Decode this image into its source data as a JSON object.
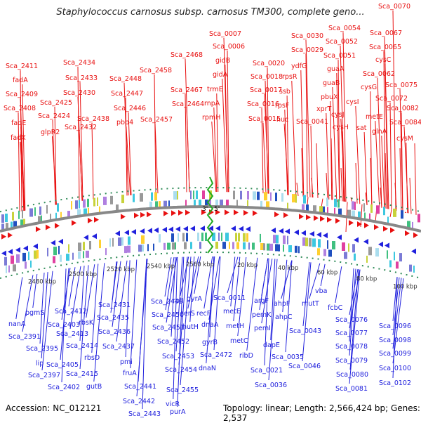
{
  "title": "Staphylococcus carnosus subsp. carnosus TM300, complete geno...",
  "accession": "Accession: NC_012121",
  "topology": "Topology: linear; Length: 2,566,424 bp; Genes: 2,537",
  "end_labels": {
    "three": "3'",
    "five": "5'"
  },
  "colors": {
    "top_strand": "#e81010",
    "bottom_strand": "#2020dd",
    "backbone": "#888888",
    "tick_dots": "#2e8b57",
    "ends": "#22aa22"
  },
  "scale_labels": [
    "2480 kbp",
    "2500 kbp",
    "2520 kbp",
    "2540 kbp",
    "2560 kbp",
    "20 kbp",
    "40 kbp",
    "60 kbp",
    "80 kbp",
    "100 kbp"
  ],
  "top_labels": [
    "Sca_2411",
    "fadA",
    "Sca_2409",
    "Sca_2408",
    "fadE",
    "fadX",
    "Sca_2425",
    "Sca_2424",
    "glpR2",
    "Sca_2434",
    "Sca_2433",
    "Sca_2430",
    "Sca_2438",
    "Sca_2432",
    "Sca_2448",
    "Sca_2447",
    "Sca_2446",
    "pbp4",
    "Sca_2458",
    "Sca_2457",
    "Sca_2468",
    "Sca_2467",
    "Sca_2464",
    "Sca_0007",
    "Sca_0006",
    "gidB",
    "gidA",
    "trmE",
    "rnpA",
    "rpmH",
    "Sca_0020",
    "Sca_0018",
    "Sca_0017",
    "Sca_0016",
    "Sca_0015",
    "Sca_0030",
    "Sca_0029",
    "ydfG",
    "rpsR",
    "ssb",
    "rpsF",
    "nuc",
    "Sca_0041",
    "Sca_0054",
    "Sca_0052",
    "Sca_0051",
    "guaA",
    "guaB",
    "pbuX",
    "xprT",
    "cysJ",
    "cysH",
    "Sca_0070",
    "Sca_0067",
    "Sca_0065",
    "cysC",
    "Sca_0062",
    "cysG",
    "Sca_0075",
    "cysI",
    "Sca_0072",
    "sat",
    "metE",
    "Sca_0082",
    "glnA",
    "Sca_0084",
    "cysM"
  ],
  "bottom_labels": [
    "pgmS",
    "nanA",
    "Sca_2403",
    "Sca_2391",
    "Sca_2395",
    "lip",
    "Sca_2405",
    "Sca_2397",
    "Sca_2402",
    "Sca_2412",
    "rbsK",
    "Sca_2413",
    "Sca_2414",
    "rbsD",
    "Sca_2415",
    "gutB",
    "Sca_2431",
    "Sca_2435",
    "Sca_2436",
    "Sca_2437",
    "pmi",
    "fruA",
    "Sca_2441",
    "Sca_2442",
    "Sca_2443",
    "Sca_2449",
    "Sca_2450",
    "Sca_2451",
    "Sca_2452",
    "Sca_2453",
    "Sca_2454",
    "Sca_2455",
    "vicR",
    "purA",
    "rplI",
    "serS",
    "hutH",
    "gyrA",
    "recF",
    "dnaA",
    "gyrB",
    "Sca_2472",
    "dnaN",
    "Sca_0011",
    "metE",
    "metH",
    "metC",
    "ribD",
    "Sca_0021",
    "argF",
    "pemK",
    "pemI",
    "dapE",
    "Sca_0035",
    "Sca_0036",
    "ahpF",
    "ahpC",
    "Sca_0043",
    "Sca_0046",
    "mutT",
    "vba",
    "fcbC",
    "Sca_0076",
    "Sca_0077",
    "Sca_0078",
    "Sca_0079",
    "Sca_0080",
    "Sca_0081",
    "Sca_0096",
    "Sca_0098",
    "Sca_0099",
    "Sca_0100",
    "Sca_0102"
  ]
}
